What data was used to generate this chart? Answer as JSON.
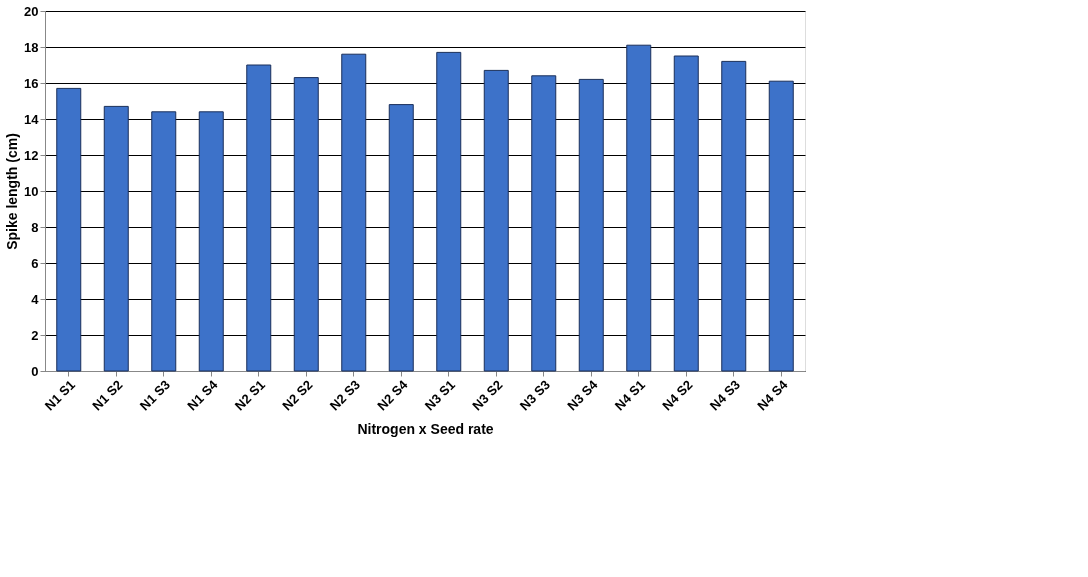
{
  "chart_data": {
    "type": "bar",
    "xlabel": "Nitrogen x Seed rate",
    "ylabel": "Spike length (cm)",
    "categories": [
      "N1 S1",
      "N1 S2",
      "N1 S3",
      "N1 S4",
      "N2 S1",
      "N2 S2",
      "N2 S3",
      "N2 S4",
      "N3 S1",
      "N3 S2",
      "N3 S3",
      "N3 S4",
      "N4 S1",
      "N4 S2",
      "N4 S3",
      "N4 S4"
    ],
    "values": [
      15.7,
      14.7,
      14.4,
      14.4,
      17.0,
      16.3,
      17.6,
      14.8,
      17.7,
      16.7,
      16.4,
      16.2,
      18.1,
      17.5,
      17.2,
      16.1
    ],
    "color": "#3d72c9",
    "ylim": [
      0,
      20
    ],
    "yticks": [
      0,
      2,
      4,
      6,
      8,
      10,
      12,
      14,
      16,
      18,
      20
    ],
    "grid": "y"
  }
}
